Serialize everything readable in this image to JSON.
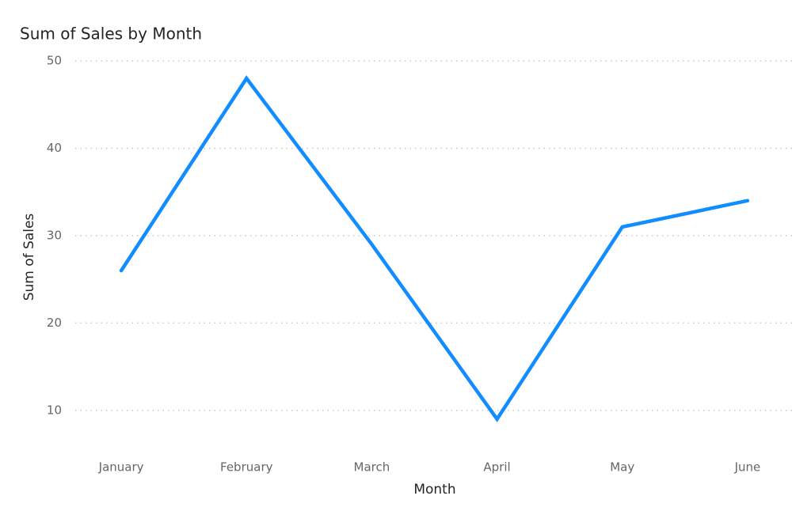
{
  "chart_data": {
    "type": "line",
    "title": "Sum of Sales by Month",
    "x_label": "Month",
    "y_label": "Sum of Sales",
    "categories": [
      "January",
      "February",
      "March",
      "April",
      "May",
      "June"
    ],
    "values": [
      26,
      48,
      29,
      9,
      31,
      34
    ],
    "color": "#118dff",
    "ylim": [
      6,
      50
    ],
    "yticks": [
      10,
      20,
      30,
      40,
      50
    ],
    "grid": true
  }
}
